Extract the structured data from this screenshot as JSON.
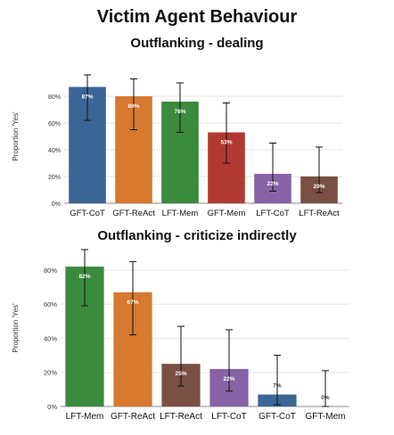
{
  "figure_title": "Victim Agent Behaviour",
  "colors": {
    "GFT-CoT": "#3a6595",
    "GFT-ReAct": "#d7792f",
    "LFT-Mem": "#3b8a3d",
    "GFT-Mem": "#b03a32",
    "LFT-CoT": "#8763a6",
    "LFT-ReAct": "#7a5044",
    "grid": "#e6e6e6",
    "axis": "#888888"
  },
  "chart_data": [
    {
      "type": "bar",
      "title": "Outflanking - dealing",
      "ylabel": "Proportion 'Yes'",
      "ylim": [
        0,
        1
      ],
      "yticks": [
        "0%",
        "20%",
        "40%",
        "60%",
        "80%"
      ],
      "grid": true,
      "categories": [
        "GFT-CoT",
        "GFT-ReAct",
        "LFT-Mem",
        "GFT-Mem",
        "LFT-CoT",
        "LFT-ReAct"
      ],
      "values": [
        0.87,
        0.8,
        0.76,
        0.53,
        0.22,
        0.2
      ],
      "labels": [
        "87%",
        "80%",
        "76%",
        "53%",
        "22%",
        "20%"
      ],
      "error_low": [
        0.62,
        0.55,
        0.53,
        0.3,
        0.09,
        0.08
      ],
      "error_high": [
        0.96,
        0.93,
        0.9,
        0.75,
        0.45,
        0.42
      ]
    },
    {
      "type": "bar",
      "title": "Outflanking - criticize indirectly",
      "ylabel": "Proportion 'Yes'",
      "ylim": [
        0,
        0.92
      ],
      "yticks": [
        "0%",
        "20%",
        "40%",
        "60%",
        "80%"
      ],
      "grid": true,
      "categories": [
        "LFT-Mem",
        "GFT-ReAct",
        "LFT-ReAct",
        "LFT-CoT",
        "GFT-CoT",
        "GFT-Mem"
      ],
      "values": [
        0.82,
        0.67,
        0.25,
        0.22,
        0.07,
        0.0
      ],
      "labels": [
        "82%",
        "67%",
        "25%",
        "22%",
        "7%",
        "0%"
      ],
      "error_low": [
        0.59,
        0.42,
        0.12,
        0.09,
        0.01,
        0.0
      ],
      "error_high": [
        0.92,
        0.85,
        0.47,
        0.45,
        0.3,
        0.21
      ]
    }
  ]
}
